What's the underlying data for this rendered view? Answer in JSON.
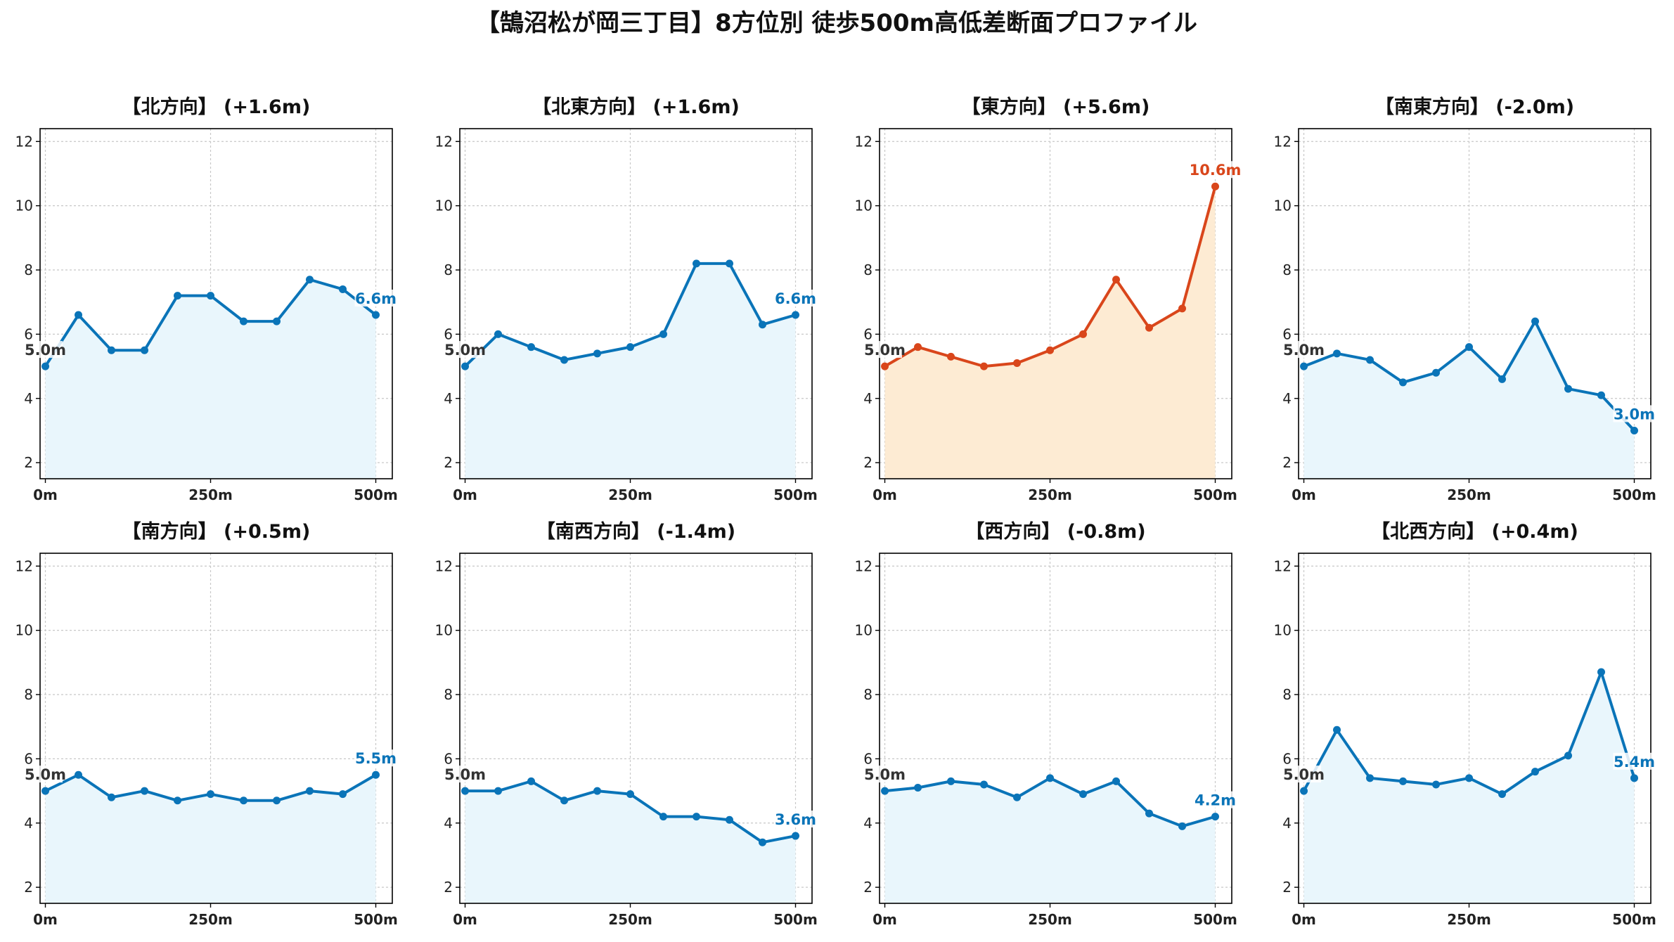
{
  "title": "【鵠沼松が岡三丁目】8方位別 徒歩500m高低差断面プロファイル",
  "colors": {
    "normal_line": "#0a74b8",
    "normal_fill": "#e9f6fc",
    "highlight_line": "#d9461b",
    "highlight_fill": "#fdebd3",
    "start_label": "#333333",
    "grid": "#c8c8c8"
  },
  "chart_data": [
    {
      "type": "area",
      "title": "【北方向】 (+1.6m)",
      "x": [
        0,
        50,
        100,
        150,
        200,
        250,
        300,
        350,
        400,
        450,
        500
      ],
      "values": [
        5.0,
        6.6,
        5.5,
        5.5,
        7.2,
        7.2,
        6.4,
        6.4,
        7.7,
        7.4,
        6.6
      ],
      "start_label": "5.0m",
      "end_label": "6.6m",
      "highlight": false,
      "xticks": [
        "0m",
        "250m",
        "500m"
      ],
      "yticks": [
        2,
        4,
        6,
        8,
        10,
        12
      ],
      "ylim": [
        1.5,
        12.4
      ],
      "xlim": [
        -8,
        525
      ],
      "grid": true
    },
    {
      "type": "area",
      "title": "【北東方向】 (+1.6m)",
      "x": [
        0,
        50,
        100,
        150,
        200,
        250,
        300,
        350,
        400,
        450,
        500
      ],
      "values": [
        5.0,
        6.0,
        5.6,
        5.2,
        5.4,
        5.6,
        6.0,
        8.2,
        8.2,
        6.3,
        6.6
      ],
      "start_label": "5.0m",
      "end_label": "6.6m",
      "highlight": false,
      "xticks": [
        "0m",
        "250m",
        "500m"
      ],
      "yticks": [
        2,
        4,
        6,
        8,
        10,
        12
      ],
      "ylim": [
        1.5,
        12.4
      ],
      "xlim": [
        -8,
        525
      ],
      "grid": true
    },
    {
      "type": "area",
      "title": "【東方向】 (+5.6m)",
      "x": [
        0,
        50,
        100,
        150,
        200,
        250,
        300,
        350,
        400,
        450,
        500
      ],
      "values": [
        5.0,
        5.6,
        5.3,
        5.0,
        5.1,
        5.5,
        6.0,
        7.7,
        6.2,
        6.8,
        10.6
      ],
      "start_label": "5.0m",
      "end_label": "10.6m",
      "highlight": true,
      "xticks": [
        "0m",
        "250m",
        "500m"
      ],
      "yticks": [
        2,
        4,
        6,
        8,
        10,
        12
      ],
      "ylim": [
        1.5,
        12.4
      ],
      "xlim": [
        -8,
        525
      ],
      "grid": true
    },
    {
      "type": "area",
      "title": "【南東方向】 (-2.0m)",
      "x": [
        0,
        50,
        100,
        150,
        200,
        250,
        300,
        350,
        400,
        450,
        500
      ],
      "values": [
        5.0,
        5.4,
        5.2,
        4.5,
        4.8,
        5.6,
        4.6,
        6.4,
        4.3,
        4.1,
        3.0
      ],
      "start_label": "5.0m",
      "end_label": "3.0m",
      "highlight": false,
      "xticks": [
        "0m",
        "250m",
        "500m"
      ],
      "yticks": [
        2,
        4,
        6,
        8,
        10,
        12
      ],
      "ylim": [
        1.5,
        12.4
      ],
      "xlim": [
        -8,
        525
      ],
      "grid": true
    },
    {
      "type": "area",
      "title": "【南方向】 (+0.5m)",
      "x": [
        0,
        50,
        100,
        150,
        200,
        250,
        300,
        350,
        400,
        450,
        500
      ],
      "values": [
        5.0,
        5.5,
        4.8,
        5.0,
        4.7,
        4.9,
        4.7,
        4.7,
        5.0,
        4.9,
        5.5
      ],
      "start_label": "5.0m",
      "end_label": "5.5m",
      "highlight": false,
      "xticks": [
        "0m",
        "250m",
        "500m"
      ],
      "yticks": [
        2,
        4,
        6,
        8,
        10,
        12
      ],
      "ylim": [
        1.5,
        12.4
      ],
      "xlim": [
        -8,
        525
      ],
      "grid": true
    },
    {
      "type": "area",
      "title": "【南西方向】 (-1.4m)",
      "x": [
        0,
        50,
        100,
        150,
        200,
        250,
        300,
        350,
        400,
        450,
        500
      ],
      "values": [
        5.0,
        5.0,
        5.3,
        4.7,
        5.0,
        4.9,
        4.2,
        4.2,
        4.1,
        3.4,
        3.6
      ],
      "start_label": "5.0m",
      "end_label": "3.6m",
      "highlight": false,
      "xticks": [
        "0m",
        "250m",
        "500m"
      ],
      "yticks": [
        2,
        4,
        6,
        8,
        10,
        12
      ],
      "ylim": [
        1.5,
        12.4
      ],
      "xlim": [
        -8,
        525
      ],
      "grid": true
    },
    {
      "type": "area",
      "title": "【西方向】 (-0.8m)",
      "x": [
        0,
        50,
        100,
        150,
        200,
        250,
        300,
        350,
        400,
        450,
        500
      ],
      "values": [
        5.0,
        5.1,
        5.3,
        5.2,
        4.8,
        5.4,
        4.9,
        5.3,
        4.3,
        3.9,
        4.2
      ],
      "start_label": "5.0m",
      "end_label": "4.2m",
      "highlight": false,
      "xticks": [
        "0m",
        "250m",
        "500m"
      ],
      "yticks": [
        2,
        4,
        6,
        8,
        10,
        12
      ],
      "ylim": [
        1.5,
        12.4
      ],
      "xlim": [
        -8,
        525
      ],
      "grid": true
    },
    {
      "type": "area",
      "title": "【北西方向】 (+0.4m)",
      "x": [
        0,
        50,
        100,
        150,
        200,
        250,
        300,
        350,
        400,
        450,
        500
      ],
      "values": [
        5.0,
        6.9,
        5.4,
        5.3,
        5.2,
        5.4,
        4.9,
        5.6,
        6.1,
        8.7,
        5.4
      ],
      "start_label": "5.0m",
      "end_label": "5.4m",
      "highlight": false,
      "xticks": [
        "0m",
        "250m",
        "500m"
      ],
      "yticks": [
        2,
        4,
        6,
        8,
        10,
        12
      ],
      "ylim": [
        1.5,
        12.4
      ],
      "xlim": [
        -8,
        525
      ],
      "grid": true
    }
  ]
}
